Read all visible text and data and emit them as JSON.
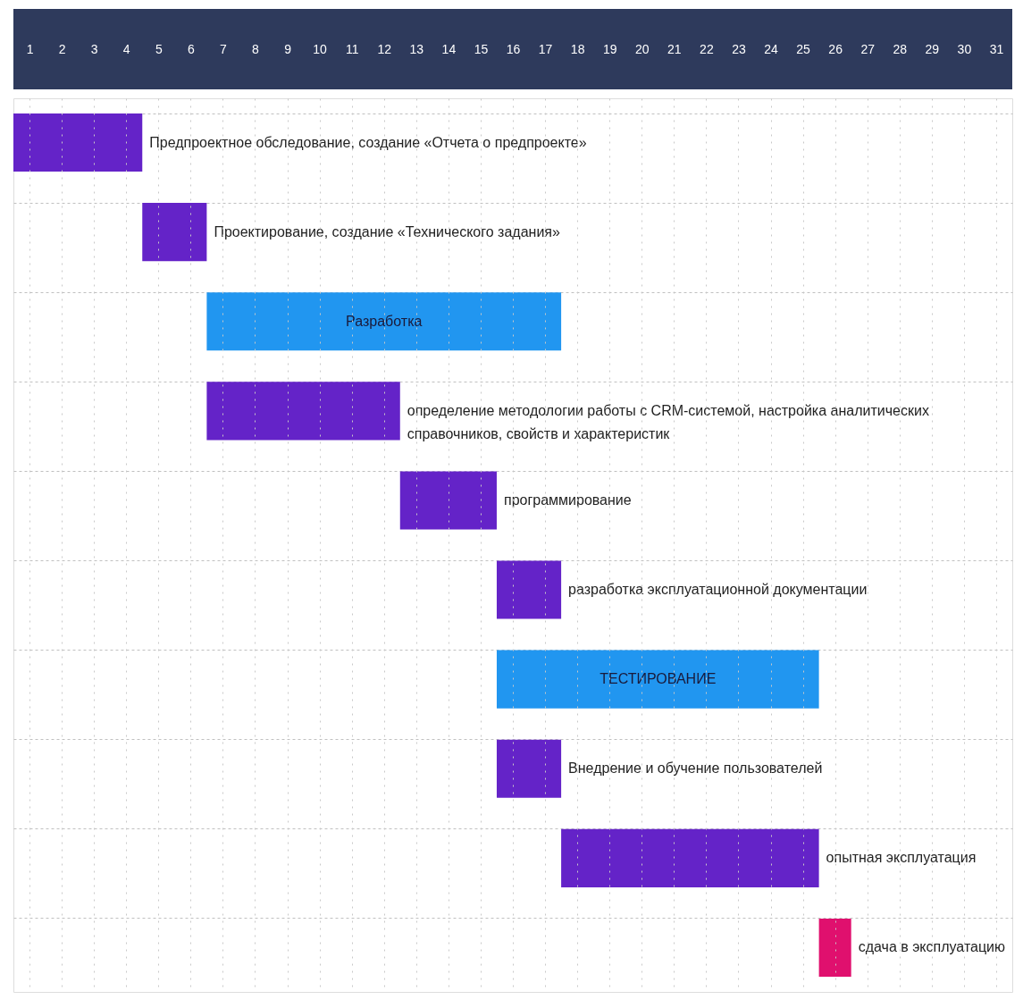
{
  "chart_data": {
    "type": "bar",
    "orientation": "horizontal",
    "categories": [
      null,
      null,
      null,
      null,
      null,
      null,
      null,
      null,
      null,
      null
    ],
    "value_labels": [
      "Предпроектное обследование, создание «Отчета о предпроекте»",
      "Проектирование, создание «Технического задания»",
      "Разработка",
      "определение методологии работы с CRM-системой, настройка аналитических справочников, свойств и характеристик",
      "программирование",
      "разработка эксплуатационной документации",
      "ТЕСТИРОВАНИЕ",
      "Внедрение и обучение пользователей",
      "опытная эксплуатация",
      "сдача в эксплуатацию"
    ],
    "base": [
      0,
      4,
      6,
      6,
      12,
      15,
      15,
      15,
      17,
      25
    ],
    "values": [
      4,
      2,
      11,
      6,
      3,
      2,
      10,
      2,
      8,
      1
    ],
    "colors": [
      "#6423c8",
      "#6423c8",
      "#2196f0",
      "#6423c8",
      "#6423c8",
      "#6423c8",
      "#2196f0",
      "#6423c8",
      "#6423c8",
      "#e0106e"
    ],
    "xlim": [
      0,
      31
    ],
    "xticks": [
      {
        "value": 0.5,
        "label": "1"
      },
      {
        "value": 1.5,
        "label": "2"
      },
      {
        "value": 2.5,
        "label": "3"
      },
      {
        "value": 3.5,
        "label": "4"
      },
      {
        "value": 4.5,
        "label": "5"
      },
      {
        "value": 5.5,
        "label": "6"
      },
      {
        "value": 6.5,
        "label": "7"
      },
      {
        "value": 7.5,
        "label": "8"
      },
      {
        "value": 8.5,
        "label": "9"
      },
      {
        "value": 9.5,
        "label": "10"
      },
      {
        "value": 10.5,
        "label": "11"
      },
      {
        "value": 11.5,
        "label": "12"
      },
      {
        "value": 12.5,
        "label": "13"
      },
      {
        "value": 13.5,
        "label": "14"
      },
      {
        "value": 14.5,
        "label": "15"
      },
      {
        "value": 15.5,
        "label": "16"
      },
      {
        "value": 16.5,
        "label": "17"
      },
      {
        "value": 17.5,
        "label": "18"
      },
      {
        "value": 18.5,
        "label": "19"
      },
      {
        "value": 19.5,
        "label": "20"
      },
      {
        "value": 20.5,
        "label": "21"
      },
      {
        "value": 21.5,
        "label": "22"
      },
      {
        "value": 22.5,
        "label": "23"
      },
      {
        "value": 23.5,
        "label": "24"
      },
      {
        "value": 24.5,
        "label": "25"
      },
      {
        "value": 25.5,
        "label": "26"
      },
      {
        "value": 26.5,
        "label": "27"
      },
      {
        "value": 27.5,
        "label": "28"
      },
      {
        "value": 28.5,
        "label": "29"
      },
      {
        "value": 29.5,
        "label": "30"
      },
      {
        "value": 30.5,
        "label": "31"
      }
    ],
    "grid": true
  }
}
